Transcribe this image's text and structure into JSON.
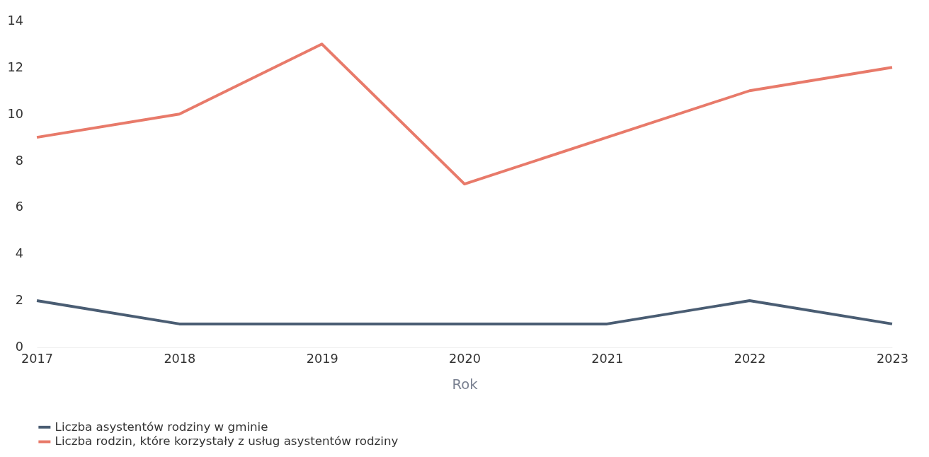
{
  "chart_data": {
    "type": "line",
    "xlabel": "Rok",
    "categories": [
      "2017",
      "2018",
      "2019",
      "2020",
      "2021",
      "2022",
      "2023"
    ],
    "series": [
      {
        "name": "Liczba asystentów rodziny w gminie",
        "color": "#4a5d73",
        "values": [
          2,
          1,
          1,
          1,
          1,
          2,
          1
        ]
      },
      {
        "name": "Liczba rodzin, które korzystały z usług asystentów rodziny",
        "color": "#e87a6a",
        "values": [
          9,
          10,
          13,
          7,
          9,
          11,
          12
        ]
      }
    ],
    "ylim": [
      0,
      14
    ],
    "yticks": [
      0,
      2,
      4,
      6,
      8,
      10,
      12,
      14
    ],
    "grid": false,
    "legend": "bottom",
    "marker": "none",
    "line_style": "solid"
  }
}
